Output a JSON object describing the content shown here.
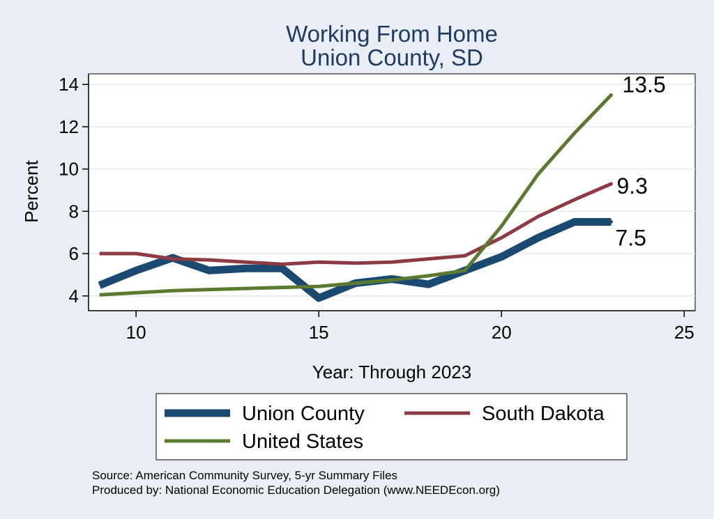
{
  "chart_data": {
    "type": "line",
    "title": "Working From Home",
    "subtitle": "Union County, SD",
    "xlabel": "Year: Through 2023",
    "ylabel": "Percent",
    "xlim": [
      8.7,
      25.3
    ],
    "ylim": [
      3.3,
      14.5
    ],
    "x_ticks": [
      10,
      15,
      20,
      25
    ],
    "y_ticks": [
      4,
      6,
      8,
      10,
      12,
      14
    ],
    "grid": true,
    "legend_position": "bottom",
    "x": [
      9,
      10,
      11,
      12,
      13,
      14,
      15,
      16,
      17,
      18,
      19,
      20,
      21,
      22,
      23
    ],
    "series": [
      {
        "name": "Union County",
        "color": "#1a4a72",
        "width": 11,
        "values": [
          4.5,
          5.2,
          5.8,
          5.2,
          5.3,
          5.3,
          3.9,
          4.6,
          4.8,
          4.55,
          5.2,
          5.85,
          6.75,
          7.5,
          7.5
        ],
        "end_label": "7.5"
      },
      {
        "name": "South Dakota",
        "color": "#8e3a45",
        "width": 5,
        "values": [
          6.0,
          6.0,
          5.75,
          5.7,
          5.6,
          5.5,
          5.6,
          5.55,
          5.6,
          5.75,
          5.9,
          6.75,
          7.75,
          8.55,
          9.3
        ],
        "end_label": "9.3"
      },
      {
        "name": "United States",
        "color": "#5b7a30",
        "width": 5,
        "values": [
          4.05,
          4.15,
          4.25,
          4.3,
          4.35,
          4.4,
          4.45,
          4.6,
          4.75,
          4.95,
          5.2,
          7.3,
          9.75,
          11.7,
          13.5
        ],
        "end_label": "13.5"
      }
    ],
    "source_lines": [
      "Source: American Community Survey, 5-yr Summary Files",
      "Produced by: National Economic Education Delegation (www.NEEDEcon.org)"
    ]
  }
}
